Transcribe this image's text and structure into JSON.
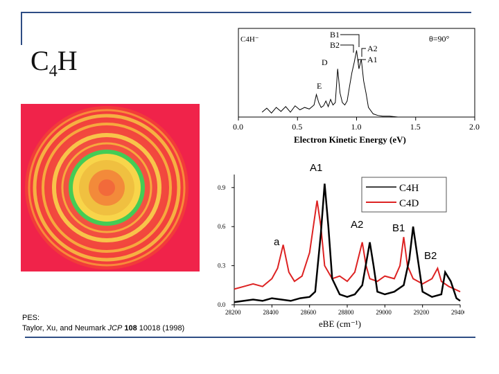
{
  "slide": {
    "title_main": "C",
    "title_sub": "4",
    "title_end": "H",
    "frame_color": "#2e4d84"
  },
  "citation": {
    "line1": "PES:",
    "prefix": "Taylor, Xu, and Neumark",
    "journal": "JCP",
    "volume": "108",
    "pages_year": "10018 (1998)"
  },
  "chart_data": [
    {
      "type": "line",
      "title": "C4H⁻",
      "angle_label": "θ=90°",
      "xlabel": "Electron Kinetic Energy (eV)",
      "xlim": [
        0.0,
        2.0
      ],
      "ylim": [
        0,
        1
      ],
      "xticks": [
        "0.0",
        "0.5",
        "1.0",
        "1.5",
        "2.0"
      ],
      "peak_labels": [
        "E",
        "D",
        "B1",
        "B2",
        "A2",
        "A1"
      ],
      "series": [
        {
          "name": "C4H-",
          "color": "#000000",
          "x": [
            0.2,
            0.24,
            0.28,
            0.32,
            0.36,
            0.4,
            0.44,
            0.48,
            0.52,
            0.56,
            0.6,
            0.64,
            0.66,
            0.68,
            0.7,
            0.72,
            0.74,
            0.76,
            0.78,
            0.8,
            0.82,
            0.84,
            0.86,
            0.88,
            0.9,
            0.92,
            0.94,
            0.96,
            0.98,
            1.0,
            1.02,
            1.04,
            1.06,
            1.08,
            1.1,
            1.14,
            1.18,
            1.22,
            1.28,
            1.35
          ],
          "y": [
            0.06,
            0.11,
            0.05,
            0.12,
            0.07,
            0.13,
            0.06,
            0.14,
            0.09,
            0.12,
            0.1,
            0.15,
            0.28,
            0.18,
            0.12,
            0.14,
            0.2,
            0.13,
            0.22,
            0.15,
            0.18,
            0.6,
            0.3,
            0.18,
            0.15,
            0.2,
            0.38,
            0.55,
            0.68,
            0.83,
            0.6,
            0.72,
            0.45,
            0.3,
            0.12,
            0.04,
            0.02,
            0.01,
            0.01,
            0.0
          ]
        }
      ]
    },
    {
      "type": "line",
      "xlabel": "eBE (cm⁻¹)",
      "xlim": [
        28200,
        29400
      ],
      "ylim": [
        0.0,
        1.0
      ],
      "xticks": [
        "28200",
        "28400",
        "28600",
        "28800",
        "29000",
        "29200",
        "29400"
      ],
      "yticks": [
        "0.0",
        "0.3",
        "0.6",
        "0.9"
      ],
      "legend": [
        "C4H",
        "C4D"
      ],
      "annotations": [
        "A1",
        "A2",
        "B1",
        "B2",
        "a"
      ],
      "series": [
        {
          "name": "C4H",
          "color": "#000000",
          "x": [
            28200,
            28250,
            28300,
            28350,
            28400,
            28450,
            28500,
            28550,
            28600,
            28630,
            28660,
            28680,
            28700,
            28720,
            28760,
            28800,
            28840,
            28880,
            28920,
            28940,
            28960,
            29000,
            29050,
            29100,
            29130,
            29150,
            29170,
            29200,
            29250,
            29300,
            29320,
            29350,
            29380,
            29400
          ],
          "y": [
            0.02,
            0.03,
            0.04,
            0.03,
            0.05,
            0.04,
            0.03,
            0.05,
            0.06,
            0.1,
            0.55,
            0.93,
            0.6,
            0.2,
            0.08,
            0.06,
            0.08,
            0.15,
            0.48,
            0.3,
            0.1,
            0.08,
            0.1,
            0.15,
            0.35,
            0.6,
            0.4,
            0.1,
            0.06,
            0.08,
            0.25,
            0.18,
            0.05,
            0.03
          ]
        },
        {
          "name": "C4D",
          "color": "#dd2222",
          "x": [
            28200,
            28250,
            28300,
            28350,
            28400,
            28430,
            28460,
            28490,
            28520,
            28560,
            28600,
            28640,
            28660,
            28680,
            28720,
            28760,
            28800,
            28840,
            28880,
            28900,
            28920,
            28960,
            29000,
            29050,
            29080,
            29100,
            29120,
            29150,
            29200,
            29250,
            29280,
            29300,
            29340,
            29370,
            29400
          ],
          "y": [
            0.12,
            0.14,
            0.16,
            0.14,
            0.2,
            0.28,
            0.46,
            0.25,
            0.18,
            0.22,
            0.4,
            0.8,
            0.6,
            0.3,
            0.2,
            0.22,
            0.18,
            0.25,
            0.48,
            0.3,
            0.2,
            0.18,
            0.22,
            0.2,
            0.3,
            0.52,
            0.3,
            0.2,
            0.16,
            0.2,
            0.28,
            0.18,
            0.14,
            0.12,
            0.1
          ]
        }
      ]
    }
  ]
}
